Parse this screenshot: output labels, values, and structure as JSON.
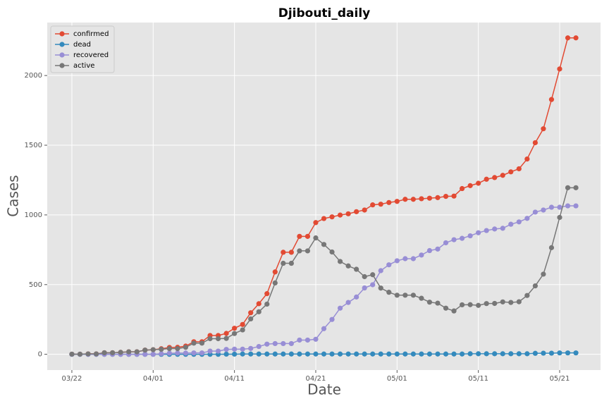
{
  "chart_data": {
    "type": "line",
    "title": "Djibouti_daily",
    "x_label": "Date",
    "y_label": "Cases",
    "categories": [
      "03/22",
      "03/23",
      "03/24",
      "03/25",
      "03/26",
      "03/27",
      "03/28",
      "03/29",
      "03/30",
      "03/31",
      "04/01",
      "04/02",
      "04/03",
      "04/04",
      "04/05",
      "04/06",
      "04/07",
      "04/08",
      "04/09",
      "04/10",
      "04/11",
      "04/12",
      "04/13",
      "04/14",
      "04/15",
      "04/16",
      "04/17",
      "04/18",
      "04/19",
      "04/20",
      "04/21",
      "04/22",
      "04/23",
      "04/24",
      "04/25",
      "04/26",
      "04/27",
      "04/28",
      "04/29",
      "04/30",
      "05/01",
      "05/02",
      "05/03",
      "05/04",
      "05/05",
      "05/06",
      "05/07",
      "05/08",
      "05/09",
      "05/10",
      "05/11",
      "05/12",
      "05/13",
      "05/14",
      "05/15",
      "05/16",
      "05/17",
      "05/18",
      "05/19",
      "05/20",
      "05/21",
      "05/22",
      "05/23"
    ],
    "xticks": [
      "03/22",
      "04/01",
      "04/11",
      "04/21",
      "05/01",
      "05/11",
      "05/21"
    ],
    "ylim": [
      -113,
      2380
    ],
    "yticks": [
      0,
      500,
      1000,
      1500,
      2000
    ],
    "grid": true,
    "legend": "upper left",
    "series": [
      {
        "name": "confirmed",
        "color": "#E24A33",
        "values": [
          1,
          1,
          3,
          3,
          11,
          11,
          14,
          18,
          18,
          30,
          33,
          40,
          49,
          50,
          59,
          90,
          90,
          135,
          135,
          150,
          187,
          214,
          298,
          363,
          435,
          591,
          732,
          732,
          846,
          846,
          945,
          974,
          986,
          999,
          1008,
          1023,
          1035,
          1072,
          1077,
          1089,
          1097,
          1112,
          1112,
          1116,
          1120,
          1124,
          1133,
          1135,
          1189,
          1210,
          1227,
          1256,
          1268,
          1284,
          1309,
          1331,
          1401,
          1518,
          1618,
          1828,
          2047,
          2270,
          2270
        ]
      },
      {
        "name": "dead",
        "color": "#348ABD",
        "values": [
          0,
          0,
          0,
          0,
          0,
          0,
          0,
          0,
          0,
          0,
          0,
          0,
          0,
          0,
          0,
          0,
          0,
          0,
          0,
          1,
          1,
          2,
          2,
          2,
          2,
          2,
          2,
          2,
          2,
          2,
          2,
          2,
          2,
          2,
          2,
          2,
          2,
          2,
          2,
          2,
          2,
          2,
          2,
          2,
          2,
          2,
          2,
          2,
          2,
          4,
          4,
          4,
          4,
          4,
          4,
          4,
          4,
          7,
          8,
          8,
          10,
          10,
          10
        ]
      },
      {
        "name": "recovered",
        "color": "#988ED5",
        "values": [
          0,
          0,
          0,
          0,
          0,
          0,
          0,
          0,
          0,
          0,
          0,
          4,
          8,
          9,
          9,
          10,
          10,
          23,
          23,
          35,
          37,
          37,
          42,
          56,
          73,
          77,
          77,
          77,
          102,
          102,
          108,
          184,
          250,
          331,
          372,
          411,
          476,
          499,
          600,
          642,
          671,
          686,
          686,
          712,
          744,
          755,
          800,
          822,
          832,
          850,
          872,
          888,
          899,
          904,
          933,
          950,
          975,
          1020,
          1035,
          1055,
          1055,
          1065,
          1065
        ]
      },
      {
        "name": "active",
        "color": "#777777",
        "values": [
          1,
          1,
          3,
          3,
          11,
          11,
          14,
          18,
          18,
          30,
          33,
          36,
          41,
          41,
          50,
          80,
          80,
          112,
          112,
          114,
          149,
          175,
          254,
          305,
          360,
          512,
          653,
          653,
          742,
          742,
          835,
          788,
          734,
          666,
          634,
          610,
          557,
          571,
          475,
          445,
          424,
          424,
          424,
          402,
          374,
          367,
          331,
          311,
          355,
          356,
          351,
          364,
          365,
          376,
          372,
          377,
          422,
          491,
          575,
          765,
          982,
          1195,
          1195
        ]
      }
    ]
  }
}
